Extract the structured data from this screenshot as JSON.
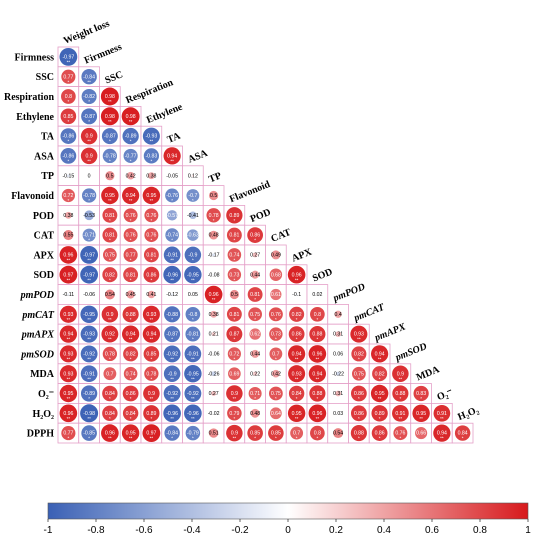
{
  "chart_data": {
    "type": "heatmap",
    "subtype": "correlation-matrix-lower-triangle",
    "title": "",
    "variables": [
      {
        "label": "Weight loss",
        "italic": false
      },
      {
        "label": "Firmness",
        "italic": false
      },
      {
        "label": "SSC",
        "italic": false
      },
      {
        "label": "Respiration",
        "italic": false
      },
      {
        "label": "Ethylene",
        "italic": false
      },
      {
        "label": "TA",
        "italic": false
      },
      {
        "label": "ASA",
        "italic": false
      },
      {
        "label": "TP",
        "italic": false
      },
      {
        "label": "Flavonoid",
        "italic": false
      },
      {
        "label": "POD",
        "italic": false
      },
      {
        "label": "CAT",
        "italic": false
      },
      {
        "label": "APX",
        "italic": false
      },
      {
        "label": "SOD",
        "italic": false
      },
      {
        "label": "pmPOD",
        "italic": true
      },
      {
        "label": "pmCAT",
        "italic": true
      },
      {
        "label": "pmAPX",
        "italic": true
      },
      {
        "label": "pmSOD",
        "italic": true
      },
      {
        "label": "MDA",
        "italic": false
      },
      {
        "label": "O₂⁻",
        "italic": false
      },
      {
        "label": "H₂O₂",
        "italic": false
      },
      {
        "label": "DPPH",
        "italic": false
      }
    ],
    "matrix": [
      [
        -0.97
      ],
      [
        0.77,
        -0.84
      ],
      [
        0.8,
        -0.82,
        0.98
      ],
      [
        0.85,
        -0.87,
        0.98,
        0.98
      ],
      [
        -0.86,
        0.9,
        -0.87,
        -0.89,
        -0.93
      ],
      [
        -0.86,
        0.9,
        -0.78,
        -0.77,
        -0.83,
        0.94
      ],
      [
        -0.15,
        0,
        0.5,
        0.42,
        0.38,
        -0.05,
        0.12
      ],
      [
        0.72,
        -0.78,
        0.95,
        0.94,
        0.95,
        -0.76,
        -0.7,
        0.5
      ],
      [
        0.38,
        -0.53,
        0.81,
        0.76,
        0.76,
        -0.57,
        -0.41,
        0.78,
        0.89
      ],
      [
        0.55,
        -0.71,
        0.81,
        0.76,
        0.76,
        -0.74,
        -0.63,
        0.48,
        0.81,
        0.86
      ],
      [
        0.96,
        -0.97,
        0.75,
        0.77,
        0.81,
        -0.91,
        -0.9,
        -0.17,
        0.74,
        0.27,
        0.49
      ],
      [
        0.97,
        -0.97,
        0.82,
        0.81,
        0.86,
        -0.96,
        -0.95,
        -0.08,
        0.73,
        0.44,
        0.68,
        0.96
      ],
      [
        -0.11,
        -0.06,
        0.54,
        0.45,
        0.41,
        -0.12,
        0.05,
        0.96,
        0.5,
        0.81,
        0.61,
        -0.1,
        0.02
      ],
      [
        0.93,
        -0.95,
        0.9,
        0.88,
        0.93,
        -0.88,
        -0.8,
        0.38,
        0.81,
        0.75,
        0.76,
        0.82,
        0.8,
        0.4
      ],
      [
        0.94,
        -0.93,
        0.92,
        0.94,
        0.94,
        -0.87,
        -0.81,
        0.21,
        0.87,
        0.62,
        0.73,
        0.86,
        0.88,
        0.31,
        0.93
      ],
      [
        0.93,
        -0.92,
        0.78,
        0.82,
        0.85,
        -0.92,
        -0.91,
        -0.06,
        0.72,
        0.44,
        0.7,
        0.94,
        0.96,
        0.06,
        0.82,
        0.94
      ],
      [
        0.93,
        -0.91,
        0.7,
        0.74,
        0.78,
        -0.9,
        -0.95,
        -0.26,
        0.69,
        0.22,
        0.42,
        0.93,
        0.94,
        -0.22,
        0.75,
        0.82,
        0.9
      ],
      [
        0.95,
        -0.89,
        0.84,
        0.86,
        0.9,
        -0.92,
        -0.92,
        0.27,
        0.9,
        0.71,
        0.75,
        0.84,
        0.88,
        0.31,
        0.86,
        0.95,
        0.88,
        0.83
      ],
      [
        0.96,
        -0.98,
        0.84,
        0.84,
        0.89,
        -0.96,
        -0.96,
        -0.02,
        0.79,
        0.48,
        0.64,
        0.95,
        0.96,
        0.03,
        0.86,
        0.89,
        0.91,
        0.95,
        0.91
      ],
      [
        0.77,
        -0.85,
        0.96,
        0.95,
        0.97,
        -0.84,
        -0.79,
        0.51,
        0.9,
        0.85,
        0.85,
        0.7,
        0.8,
        0.54,
        0.88,
        0.86,
        0.76,
        0.66,
        0.94,
        0.84
      ]
    ],
    "stars": [
      [
        "**"
      ],
      [
        "*",
        "**"
      ],
      [
        "*",
        "*",
        "**"
      ],
      [
        "*",
        "*",
        "**",
        "**"
      ],
      [
        "*",
        "**",
        "*",
        "*",
        "**"
      ],
      [
        "*",
        "**",
        "*",
        "*",
        "*",
        "**"
      ],
      [
        "",
        "",
        "",
        "",
        "",
        "",
        ""
      ],
      [
        "*",
        "*",
        "**",
        "**",
        "**",
        "*",
        "*",
        ""
      ],
      [
        "",
        "",
        "*",
        "*",
        "*",
        "",
        "",
        "*",
        "*"
      ],
      [
        "",
        "*",
        "*",
        "*",
        "*",
        "*",
        "",
        "",
        "*",
        "*"
      ],
      [
        "**",
        "**",
        "*",
        "*",
        "*",
        "**",
        "*",
        "",
        "*",
        "",
        ""
      ],
      [
        "**",
        "**",
        "*",
        "*",
        "*",
        "**",
        "**",
        "",
        "*",
        "",
        "",
        "**"
      ],
      [
        "",
        "",
        "",
        "",
        "",
        "",
        "",
        "**",
        "",
        "*",
        "",
        "",
        ""
      ],
      [
        "**",
        "**",
        "**",
        "*",
        "**",
        "*",
        "*",
        "",
        "*",
        "*",
        "*",
        "*",
        "*",
        ""
      ],
      [
        "**",
        "**",
        "**",
        "**",
        "**",
        "*",
        "*",
        "",
        "*",
        "",
        "*",
        "*",
        "*",
        "",
        "**"
      ],
      [
        "**",
        "**",
        "*",
        "*",
        "*",
        "**",
        "**",
        "",
        "*",
        "",
        "*",
        "**",
        "**",
        "",
        "*",
        "**"
      ],
      [
        "**",
        "**",
        "",
        "*",
        "*",
        "**",
        "**",
        "",
        "",
        "",
        "",
        "**",
        "**",
        "",
        "*",
        "*",
        "**"
      ],
      [
        "**",
        "*",
        "*",
        "*",
        "**",
        "**",
        "**",
        "",
        "**",
        "*",
        "*",
        "*",
        "*",
        "",
        "*",
        "**",
        "*",
        "*"
      ],
      [
        "**",
        "**",
        "*",
        "*",
        "*",
        "**",
        "**",
        "",
        "*",
        "",
        "",
        "**",
        "**",
        "",
        "*",
        "*",
        "**",
        "**",
        "**"
      ],
      [
        "*",
        "*",
        "**",
        "**",
        "**",
        "*",
        "*",
        "",
        "**",
        "*",
        "*",
        "*",
        "*",
        "",
        "*",
        "*",
        "*",
        "",
        "**",
        "*"
      ]
    ],
    "colorbar": {
      "range": [
        -1,
        1
      ],
      "ticks": [
        "-1",
        "-0.8",
        "-0.6",
        "-0.4",
        "-0.2",
        "0",
        "0.2",
        "0.4",
        "0.6",
        "0.8",
        "1"
      ],
      "colors": {
        "negative": "#3a60b5",
        "neutral": "#ffffff",
        "positive": "#d7191c"
      }
    },
    "grid": true,
    "legend": "bottom"
  }
}
